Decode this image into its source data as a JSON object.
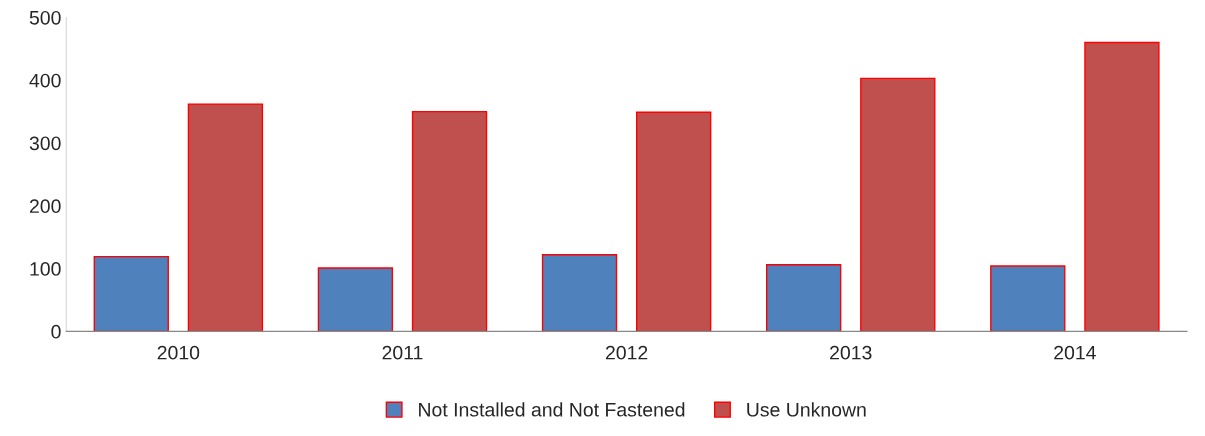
{
  "chart_data": {
    "type": "bar",
    "categories": [
      "2010",
      "2011",
      "2012",
      "2013",
      "2014"
    ],
    "series": [
      {
        "name": "Not Installed and Not Fastened",
        "color": "#4f81bd",
        "values": [
          119,
          101,
          122,
          106,
          104
        ]
      },
      {
        "name": "Use Unknown",
        "color": "#c0504d",
        "values": [
          362,
          350,
          349,
          403,
          460
        ]
      }
    ],
    "ylim": [
      0,
      500
    ],
    "yticks": [
      0,
      100,
      200,
      300,
      400,
      500
    ],
    "grid": false,
    "legend": "bottom"
  }
}
